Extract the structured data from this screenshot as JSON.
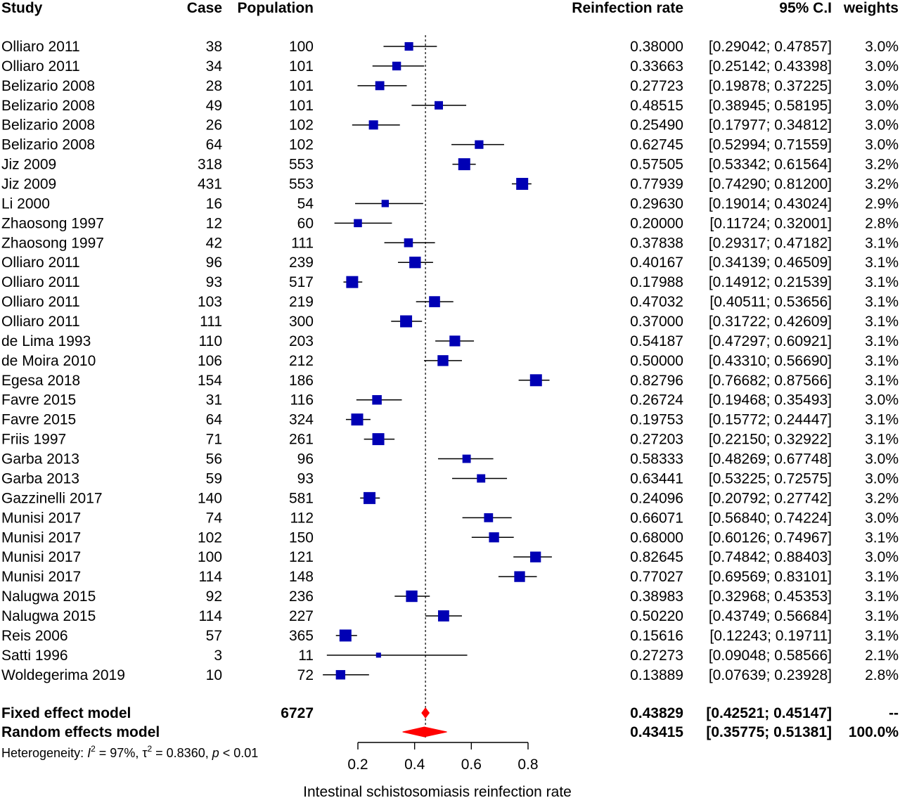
{
  "headers": {
    "study": "Study",
    "case": "Case",
    "population": "Population",
    "rate": "Reinfection rate",
    "ci": "95% C.I",
    "weights": "weights"
  },
  "colors": {
    "study_marker": "#0000b4",
    "pooled_marker": "#ff0000",
    "text": "#000000"
  },
  "chart_data": {
    "type": "forest",
    "xlabel": "Intestinal schistosomiasis reinfection rate",
    "xticks": [
      "0.2",
      "0.4",
      "0.6",
      "0.8"
    ],
    "xlim": [
      0.2,
      0.8
    ],
    "reference_line": 0.43829,
    "studies": [
      {
        "name": "Olliaro 2011",
        "case": "38",
        "population": "100",
        "rate": "0.38000",
        "ci": "[0.29042; 0.47857]",
        "weight": "3.0%",
        "est": 0.38,
        "lo": 0.29042,
        "hi": 0.47857,
        "w": 3.0
      },
      {
        "name": "Olliaro 2011",
        "case": "34",
        "population": "101",
        "rate": "0.33663",
        "ci": "[0.25142; 0.43398]",
        "weight": "3.0%",
        "est": 0.33663,
        "lo": 0.25142,
        "hi": 0.43398,
        "w": 3.0
      },
      {
        "name": "Belizario 2008",
        "case": "28",
        "population": "101",
        "rate": "0.27723",
        "ci": "[0.19878; 0.37225]",
        "weight": "3.0%",
        "est": 0.27723,
        "lo": 0.19878,
        "hi": 0.37225,
        "w": 3.0
      },
      {
        "name": "Belizario 2008",
        "case": "49",
        "population": "101",
        "rate": "0.48515",
        "ci": "[0.38945; 0.58195]",
        "weight": "3.0%",
        "est": 0.48515,
        "lo": 0.38945,
        "hi": 0.58195,
        "w": 3.0
      },
      {
        "name": "Belizario 2008",
        "case": "26",
        "population": "102",
        "rate": "0.25490",
        "ci": "[0.17977; 0.34812]",
        "weight": "3.0%",
        "est": 0.2549,
        "lo": 0.17977,
        "hi": 0.34812,
        "w": 3.0
      },
      {
        "name": "Belizario 2008",
        "case": "64",
        "population": "102",
        "rate": "0.62745",
        "ci": "[0.52994; 0.71559]",
        "weight": "3.0%",
        "est": 0.62745,
        "lo": 0.52994,
        "hi": 0.71559,
        "w": 3.0
      },
      {
        "name": "Jiz 2009",
        "case": "318",
        "population": "553",
        "rate": "0.57505",
        "ci": "[0.53342; 0.61564]",
        "weight": "3.2%",
        "est": 0.57505,
        "lo": 0.53342,
        "hi": 0.61564,
        "w": 3.2
      },
      {
        "name": "Jiz 2009",
        "case": "431",
        "population": "553",
        "rate": "0.77939",
        "ci": "[0.74290; 0.81200]",
        "weight": "3.2%",
        "est": 0.77939,
        "lo": 0.7429,
        "hi": 0.812,
        "w": 3.2
      },
      {
        "name": "Li 2000",
        "case": "16",
        "population": "54",
        "rate": "0.29630",
        "ci": "[0.19014; 0.43024]",
        "weight": "2.9%",
        "est": 0.2963,
        "lo": 0.19014,
        "hi": 0.43024,
        "w": 2.9
      },
      {
        "name": "Zhaosong 1997",
        "case": "12",
        "population": "60",
        "rate": "0.20000",
        "ci": "[0.11724; 0.32001]",
        "weight": "2.8%",
        "est": 0.2,
        "lo": 0.11724,
        "hi": 0.32001,
        "w": 2.8
      },
      {
        "name": "Zhaosong 1997",
        "case": "42",
        "population": "111",
        "rate": "0.37838",
        "ci": "[0.29317; 0.47182]",
        "weight": "3.1%",
        "est": 0.37838,
        "lo": 0.29317,
        "hi": 0.47182,
        "w": 3.1
      },
      {
        "name": "Olliaro 2011",
        "case": "96",
        "population": "239",
        "rate": "0.40167",
        "ci": "[0.34139; 0.46509]",
        "weight": "3.1%",
        "est": 0.40167,
        "lo": 0.34139,
        "hi": 0.46509,
        "w": 3.1
      },
      {
        "name": "Olliaro 2011",
        "case": "93",
        "population": "517",
        "rate": "0.17988",
        "ci": "[0.14912; 0.21539]",
        "weight": "3.1%",
        "est": 0.17988,
        "lo": 0.14912,
        "hi": 0.21539,
        "w": 3.1
      },
      {
        "name": "Olliaro 2011",
        "case": "103",
        "population": "219",
        "rate": "0.47032",
        "ci": "[0.40511; 0.53656]",
        "weight": "3.1%",
        "est": 0.47032,
        "lo": 0.40511,
        "hi": 0.53656,
        "w": 3.1
      },
      {
        "name": "Olliaro 2011",
        "case": "111",
        "population": "300",
        "rate": "0.37000",
        "ci": "[0.31722; 0.42609]",
        "weight": "3.1%",
        "est": 0.37,
        "lo": 0.31722,
        "hi": 0.42609,
        "w": 3.1
      },
      {
        "name": "de Lima 1993",
        "case": "110",
        "population": "203",
        "rate": "0.54187",
        "ci": "[0.47297; 0.60921]",
        "weight": "3.1%",
        "est": 0.54187,
        "lo": 0.47297,
        "hi": 0.60921,
        "w": 3.1
      },
      {
        "name": "de Moira 2010",
        "case": "106",
        "population": "212",
        "rate": "0.50000",
        "ci": "[0.43310; 0.56690]",
        "weight": "3.1%",
        "est": 0.5,
        "lo": 0.4331,
        "hi": 0.5669,
        "w": 3.1
      },
      {
        "name": "Egesa 2018",
        "case": "154",
        "population": "186",
        "rate": "0.82796",
        "ci": "[0.76682; 0.87566]",
        "weight": "3.1%",
        "est": 0.82796,
        "lo": 0.76682,
        "hi": 0.87566,
        "w": 3.1
      },
      {
        "name": "Favre 2015",
        "case": "31",
        "population": "116",
        "rate": "0.26724",
        "ci": "[0.19468; 0.35493]",
        "weight": "3.0%",
        "est": 0.26724,
        "lo": 0.19468,
        "hi": 0.35493,
        "w": 3.0
      },
      {
        "name": "Favre 2015",
        "case": "64",
        "population": "324",
        "rate": "0.19753",
        "ci": "[0.15772; 0.24447]",
        "weight": "3.1%",
        "est": 0.19753,
        "lo": 0.15772,
        "hi": 0.24447,
        "w": 3.1
      },
      {
        "name": "Friis 1997",
        "case": "71",
        "population": "261",
        "rate": "0.27203",
        "ci": "[0.22150; 0.32922]",
        "weight": "3.1%",
        "est": 0.27203,
        "lo": 0.2215,
        "hi": 0.32922,
        "w": 3.1
      },
      {
        "name": "Garba 2013",
        "case": "56",
        "population": "96",
        "rate": "0.58333",
        "ci": "[0.48269; 0.67748]",
        "weight": "3.0%",
        "est": 0.58333,
        "lo": 0.48269,
        "hi": 0.67748,
        "w": 3.0
      },
      {
        "name": "Garba 2013",
        "case": "59",
        "population": "93",
        "rate": "0.63441",
        "ci": "[0.53225; 0.72575]",
        "weight": "3.0%",
        "est": 0.63441,
        "lo": 0.53225,
        "hi": 0.72575,
        "w": 3.0
      },
      {
        "name": "Gazzinelli 2017",
        "case": "140",
        "population": "581",
        "rate": "0.24096",
        "ci": "[0.20792; 0.27742]",
        "weight": "3.2%",
        "est": 0.24096,
        "lo": 0.20792,
        "hi": 0.27742,
        "w": 3.2
      },
      {
        "name": "Munisi 2017",
        "case": "74",
        "population": "112",
        "rate": "0.66071",
        "ci": "[0.56840; 0.74224]",
        "weight": "3.0%",
        "est": 0.66071,
        "lo": 0.5684,
        "hi": 0.74224,
        "w": 3.0
      },
      {
        "name": "Munisi 2017",
        "case": "102",
        "population": "150",
        "rate": "0.68000",
        "ci": "[0.60126; 0.74967]",
        "weight": "3.1%",
        "est": 0.68,
        "lo": 0.60126,
        "hi": 0.74967,
        "w": 3.1
      },
      {
        "name": "Munisi 2017",
        "case": "100",
        "population": "121",
        "rate": "0.82645",
        "ci": "[0.74842; 0.88403]",
        "weight": "3.0%",
        "est": 0.82645,
        "lo": 0.74842,
        "hi": 0.88403,
        "w": 3.0
      },
      {
        "name": "Munisi 2017",
        "case": "114",
        "population": "148",
        "rate": "0.77027",
        "ci": "[0.69569; 0.83101]",
        "weight": "3.1%",
        "est": 0.77027,
        "lo": 0.69569,
        "hi": 0.83101,
        "w": 3.1
      },
      {
        "name": "Nalugwa 2015",
        "case": "92",
        "population": "236",
        "rate": "0.38983",
        "ci": "[0.32968; 0.45353]",
        "weight": "3.1%",
        "est": 0.38983,
        "lo": 0.32968,
        "hi": 0.45353,
        "w": 3.1
      },
      {
        "name": "Nalugwa 2015",
        "case": "114",
        "population": "227",
        "rate": "0.50220",
        "ci": "[0.43749; 0.56684]",
        "weight": "3.1%",
        "est": 0.5022,
        "lo": 0.43749,
        "hi": 0.56684,
        "w": 3.1
      },
      {
        "name": "Reis 2006",
        "case": "57",
        "population": "365",
        "rate": "0.15616",
        "ci": "[0.12243; 0.19711]",
        "weight": "3.1%",
        "est": 0.15616,
        "lo": 0.12243,
        "hi": 0.19711,
        "w": 3.1
      },
      {
        "name": "Satti 1996",
        "case": "3",
        "population": "11",
        "rate": "0.27273",
        "ci": "[0.09048; 0.58566]",
        "weight": "2.1%",
        "est": 0.27273,
        "lo": 0.09048,
        "hi": 0.58566,
        "w": 2.1
      },
      {
        "name": "Woldegerima 2019",
        "case": "10",
        "population": "72",
        "rate": "0.13889",
        "ci": "[0.07639; 0.23928]",
        "weight": "2.8%",
        "est": 0.13889,
        "lo": 0.07639,
        "hi": 0.23928,
        "w": 2.8
      }
    ],
    "pooled": [
      {
        "name": "Fixed effect model",
        "population": "6727",
        "rate": "0.43829",
        "ci": "[0.42521; 0.45147]",
        "weight": "--",
        "est": 0.43829,
        "lo": 0.42521,
        "hi": 0.45147
      },
      {
        "name": "Random effects model",
        "population": "",
        "rate": "0.43415",
        "ci": "[0.35775; 0.51381]",
        "weight": "100.0%",
        "est": 0.43415,
        "lo": 0.35775,
        "hi": 0.51381
      }
    ],
    "heterogeneity": {
      "prefix": "Heterogeneity: ",
      "i2_symbol": "I",
      "i2_power": "2",
      "i2_value": " = 97%, ",
      "tau_symbol": "τ",
      "tau_power": "2",
      "tau_value": " = 0.8360, ",
      "p_symbol": "p",
      "p_value": " < 0.01"
    }
  }
}
